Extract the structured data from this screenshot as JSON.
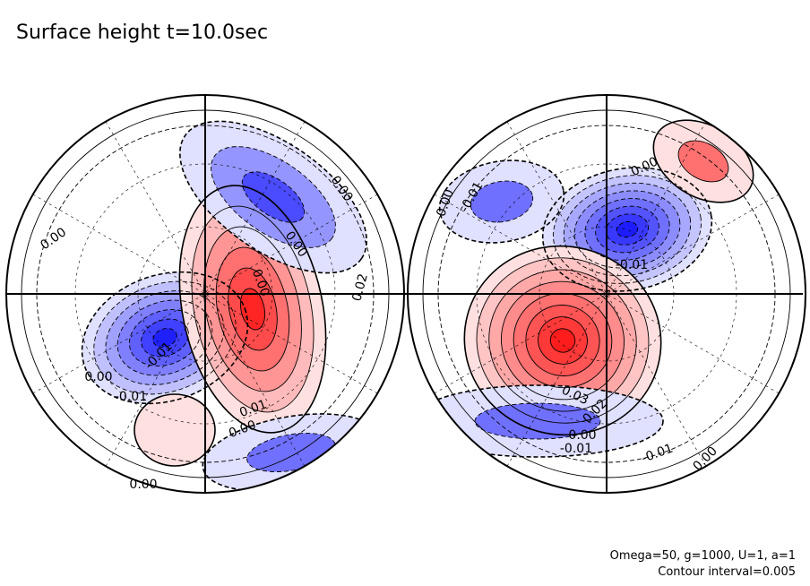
{
  "header": {
    "title": "Surface height t=10.0sec"
  },
  "footer": {
    "params": "Omega=50, g=1000, U=1, a=1",
    "contour_interval": "Contour interval=0.005"
  },
  "colors": {
    "positive_strong": "#ff0000",
    "positive_weak": "#ffe0e0",
    "negative_strong": "#0000ff",
    "negative_weak": "#e0e0ff",
    "contour": "#000000",
    "background": "#ffffff"
  },
  "chart_data": {
    "type": "contour",
    "projection": "orthographic, two hemispheres",
    "grid": true,
    "contour_interval": 0.005,
    "panels": [
      {
        "name": "left hemisphere",
        "features": [
          {
            "kind": "low",
            "approx_value": -0.03
          },
          {
            "kind": "high",
            "approx_value": 0.02
          },
          {
            "kind": "low",
            "approx_value": -0.01
          }
        ],
        "labels": [
          "0.00",
          "0.00",
          "0.00",
          "-0.01",
          "0.00",
          "0.02",
          "-0.01",
          "0.00",
          "0.01",
          "0.00",
          "0.00"
        ]
      },
      {
        "name": "right hemisphere",
        "features": [
          {
            "kind": "low",
            "approx_value": -0.035
          },
          {
            "kind": "high",
            "approx_value": 0.035
          },
          {
            "kind": "high",
            "approx_value": 0.01
          }
        ],
        "labels": [
          "0.00",
          "-0.01",
          "0.00",
          "-0.01",
          "0.03",
          "0.02",
          "0.00",
          "-0.01",
          "-0.01",
          "0.00"
        ]
      }
    ]
  }
}
